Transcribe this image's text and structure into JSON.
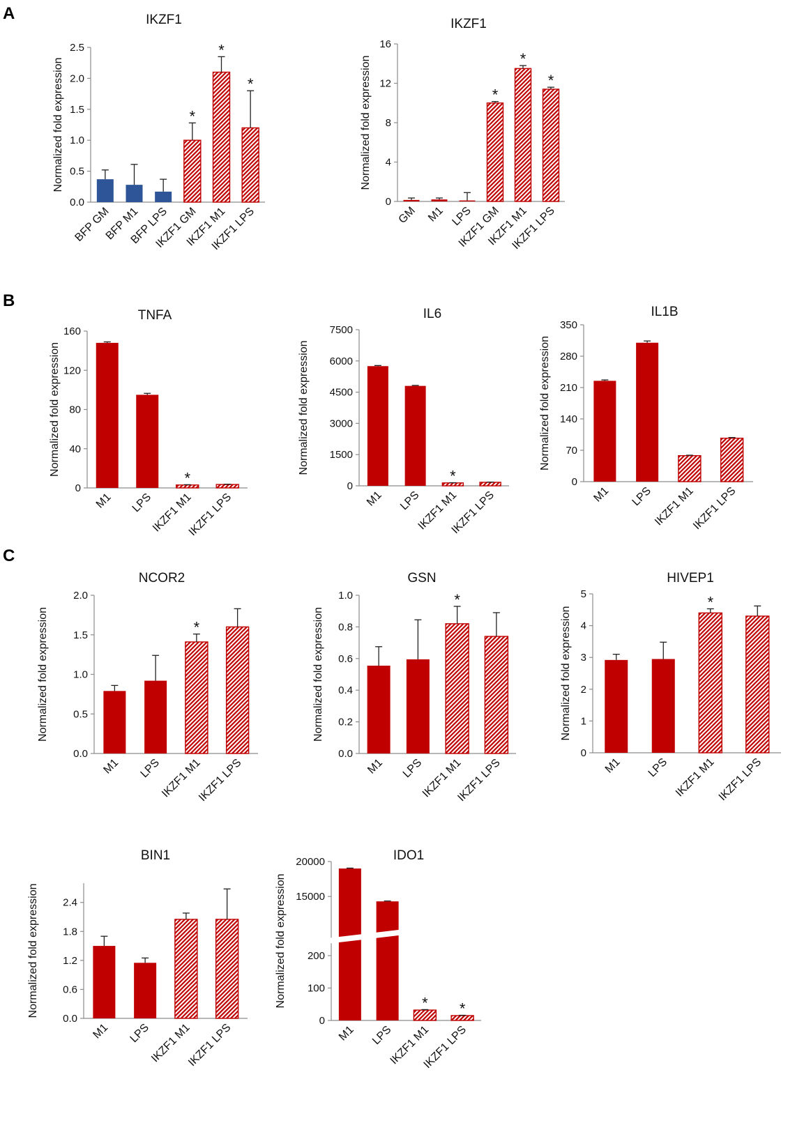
{
  "sections": {
    "a": "A",
    "b": "B",
    "c": "C"
  },
  "colors": {
    "red": "#c00000",
    "blue": "#2e5597",
    "axis": "#8c8c8c",
    "error": "#222222"
  },
  "chart_data": [
    {
      "id": "a1",
      "type": "bar",
      "title": "IKZF1",
      "ylabel": "Normalized fold expression",
      "categories": [
        "BFP GM",
        "BFP M1",
        "BFP LPS",
        "IKZF1 GM",
        "IKZF1 M1",
        "IKZF1 LPS"
      ],
      "values": [
        0.37,
        0.28,
        0.17,
        1.0,
        2.1,
        1.2
      ],
      "errors": [
        0.15,
        0.33,
        0.2,
        0.28,
        0.25,
        0.6
      ],
      "fills": [
        "blue",
        "blue",
        "blue",
        "hatch",
        "hatch",
        "hatch"
      ],
      "significant": [
        false,
        false,
        false,
        true,
        true,
        true
      ],
      "ylim": [
        0,
        2.5
      ],
      "yticks": [
        "0.0",
        "0.5",
        "1.0",
        "1.5",
        "2.0",
        "2.5"
      ]
    },
    {
      "id": "a2",
      "type": "bar",
      "title": "IKZF1",
      "ylabel": "Normalized fold expression",
      "categories": [
        "GM",
        "M1",
        "LPS",
        "IKZF1 GM",
        "IKZF1 M1",
        "IKZF1 LPS"
      ],
      "values": [
        0.15,
        0.2,
        0.1,
        10.0,
        13.5,
        11.4
      ],
      "errors": [
        0.2,
        0.15,
        0.8,
        0.15,
        0.3,
        0.2
      ],
      "fills": [
        "solid",
        "solid",
        "solid",
        "hatch",
        "hatch",
        "hatch"
      ],
      "significant": [
        false,
        false,
        false,
        true,
        true,
        true
      ],
      "ylim": [
        0,
        16
      ],
      "yticks": [
        "0",
        "4",
        "8",
        "12",
        "16"
      ]
    },
    {
      "id": "b1",
      "type": "bar",
      "title": "TNFA",
      "ylabel": "Normalized fold expression",
      "categories": [
        "M1",
        "LPS",
        "IKZF1 M1",
        "IKZF1 LPS"
      ],
      "values": [
        148,
        95,
        3,
        3.5
      ],
      "errors": [
        1,
        1.5,
        0.3,
        0.3
      ],
      "fills": [
        "solid",
        "solid",
        "hatch",
        "hatch"
      ],
      "significant": [
        false,
        false,
        true,
        false
      ],
      "ylim": [
        0,
        160
      ],
      "yticks": [
        "0",
        "40",
        "80",
        "120",
        "160"
      ]
    },
    {
      "id": "b2",
      "type": "bar",
      "title": "IL6",
      "ylabel": "Normalized fold expression",
      "categories": [
        "M1",
        "LPS",
        "IKZF1 M1",
        "IKZF1 LPS"
      ],
      "values": [
        5750,
        4800,
        140,
        170
      ],
      "errors": [
        30,
        25,
        10,
        10
      ],
      "fills": [
        "solid",
        "solid",
        "hatch",
        "hatch"
      ],
      "significant": [
        false,
        false,
        true,
        false
      ],
      "ylim": [
        0,
        7500
      ],
      "yticks": [
        "0",
        "1500",
        "3000",
        "4500",
        "6000",
        "7500"
      ]
    },
    {
      "id": "b3",
      "type": "bar",
      "title": "IL1B",
      "ylabel": "Normalized fold expression",
      "categories": [
        "M1",
        "LPS",
        "IKZF1 M1",
        "IKZF1 LPS"
      ],
      "values": [
        225,
        310,
        58,
        97
      ],
      "errors": [
        2,
        4,
        1,
        1.5
      ],
      "fills": [
        "solid",
        "solid",
        "hatch",
        "hatch"
      ],
      "significant": [
        false,
        false,
        false,
        false
      ],
      "ylim": [
        0,
        350
      ],
      "yticks": [
        "0",
        "70",
        "140",
        "210",
        "280",
        "350"
      ]
    },
    {
      "id": "c1",
      "type": "bar",
      "title": "NCOR2",
      "ylabel": "Normalized fold expression",
      "categories": [
        "M1",
        "LPS",
        "IKZF1 M1",
        "IKZF1 LPS"
      ],
      "values": [
        0.79,
        0.92,
        1.41,
        1.6
      ],
      "errors": [
        0.07,
        0.32,
        0.1,
        0.23
      ],
      "fills": [
        "solid",
        "solid",
        "hatch",
        "hatch"
      ],
      "significant": [
        false,
        false,
        true,
        false
      ],
      "ylim": [
        0,
        2.0
      ],
      "yticks": [
        "0.0",
        "0.5",
        "1.0",
        "1.5",
        "2.0"
      ]
    },
    {
      "id": "c2",
      "type": "bar",
      "title": "GSN",
      "ylabel": "Normalized fold expression",
      "categories": [
        "M1",
        "LPS",
        "IKZF1 M1",
        "IKZF1 LPS"
      ],
      "values": [
        0.555,
        0.595,
        0.82,
        0.74
      ],
      "errors": [
        0.12,
        0.25,
        0.11,
        0.15
      ],
      "fills": [
        "solid",
        "solid",
        "hatch",
        "hatch"
      ],
      "significant": [
        false,
        false,
        true,
        false
      ],
      "ylim": [
        0,
        1.0
      ],
      "yticks": [
        "0.0",
        "0.2",
        "0.4",
        "0.6",
        "0.8",
        "1.0"
      ]
    },
    {
      "id": "c3",
      "type": "bar",
      "title": "HIVEP1",
      "ylabel": "Normalized fold expression",
      "categories": [
        "M1",
        "LPS",
        "IKZF1 M1",
        "IKZF1 LPS"
      ],
      "values": [
        2.92,
        2.95,
        4.4,
        4.3
      ],
      "errors": [
        0.18,
        0.53,
        0.13,
        0.32
      ],
      "fills": [
        "solid",
        "solid",
        "hatch",
        "hatch"
      ],
      "significant": [
        false,
        false,
        true,
        false
      ],
      "ylim": [
        0,
        5
      ],
      "yticks": [
        "0",
        "1",
        "2",
        "3",
        "4",
        "5"
      ]
    },
    {
      "id": "c4",
      "type": "bar",
      "title": "BIN1",
      "ylabel": "Normalized fold expression",
      "categories": [
        "M1",
        "LPS",
        "IKZF1 M1",
        "IKZF1 LPS"
      ],
      "values": [
        1.5,
        1.15,
        2.05,
        2.05
      ],
      "errors": [
        0.2,
        0.1,
        0.13,
        0.63
      ],
      "fills": [
        "solid",
        "solid",
        "hatch",
        "hatch"
      ],
      "significant": [
        false,
        false,
        false,
        false
      ],
      "ylim": [
        0,
        2.8
      ],
      "yticks": [
        "0.0",
        "0.6",
        "1.2",
        "1.8",
        "2.4"
      ]
    },
    {
      "id": "c5",
      "type": "bar",
      "title": "IDO1",
      "ylabel": "Normalized fold expression",
      "categories": [
        "M1",
        "LPS",
        "IKZF1 M1",
        "IKZF1 LPS"
      ],
      "values": [
        19000,
        14300,
        32,
        15
      ],
      "errors": [
        60,
        60,
        1.5,
        1
      ],
      "fills": [
        "solid",
        "solid",
        "hatch",
        "hatch"
      ],
      "significant": [
        false,
        false,
        true,
        true
      ],
      "ylim": [
        0,
        20000
      ],
      "axis_break": {
        "lower": [
          0,
          250
        ],
        "upper": [
          10000,
          20000
        ]
      },
      "yticks": [
        "0",
        "100",
        "200",
        "15000",
        "20000"
      ]
    }
  ]
}
